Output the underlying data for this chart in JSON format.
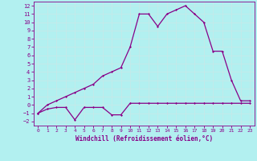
{
  "xlabel": "Windchill (Refroidissement éolien,°C)",
  "background_color": "#b2f0f0",
  "grid_color": "#aadddd",
  "line_color": "#880088",
  "xlim": [
    -0.5,
    23.5
  ],
  "ylim": [
    -2.5,
    12.5
  ],
  "xticks": [
    0,
    1,
    2,
    3,
    4,
    5,
    6,
    7,
    8,
    9,
    10,
    11,
    12,
    13,
    14,
    15,
    16,
    17,
    18,
    19,
    20,
    21,
    22,
    23
  ],
  "yticks": [
    -2,
    -1,
    0,
    1,
    2,
    3,
    4,
    5,
    6,
    7,
    8,
    9,
    10,
    11,
    12
  ],
  "line1_x": [
    0,
    1,
    2,
    3,
    4,
    5,
    6,
    7,
    8,
    9,
    10,
    11,
    12,
    13,
    14,
    15,
    16,
    17,
    18,
    19,
    20,
    21,
    22,
    23
  ],
  "line1_y": [
    -1,
    -0.5,
    -0.3,
    -0.3,
    -1.8,
    -0.3,
    -0.3,
    -0.3,
    -1.2,
    -1.2,
    0.2,
    0.2,
    0.2,
    0.2,
    0.2,
    0.2,
    0.2,
    0.2,
    0.2,
    0.2,
    0.2,
    0.2,
    0.2,
    0.2
  ],
  "line2_x": [
    0,
    1,
    2,
    3,
    4,
    5,
    6,
    7,
    8,
    9,
    10,
    11,
    12,
    13,
    14,
    15,
    16,
    17,
    18,
    19,
    20,
    21,
    22,
    23
  ],
  "line2_y": [
    -1,
    0.0,
    0.5,
    1.0,
    1.5,
    2.0,
    2.5,
    3.5,
    4.0,
    4.5,
    7.0,
    11.0,
    11.0,
    9.5,
    11.0,
    11.5,
    12.0,
    11.0,
    10.0,
    6.5,
    6.5,
    3.0,
    0.5,
    0.5
  ]
}
